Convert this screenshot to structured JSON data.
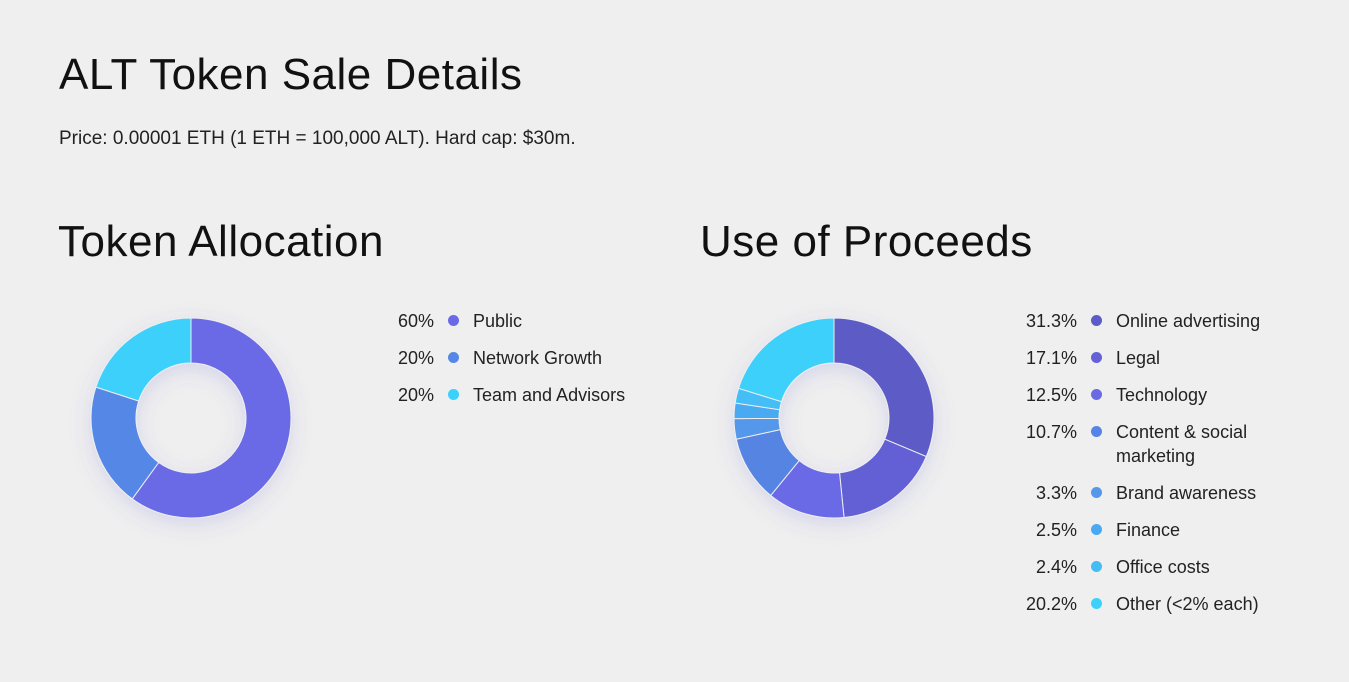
{
  "header": {
    "title": "ALT Token Sale Details",
    "subtitle": "Price: 0.00001 ETH (1 ETH = 100,000 ALT). Hard cap: $30m."
  },
  "chart_data": [
    {
      "type": "pie",
      "title": "Token Allocation",
      "legend_placement": "right",
      "slices": [
        {
          "label": "Public",
          "value": 60,
          "display": "60%",
          "color": "#6b6ae6"
        },
        {
          "label": "Network Growth",
          "value": 20,
          "display": "20%",
          "color": "#5588e6"
        },
        {
          "label": "Team and Advisors",
          "value": 20,
          "display": "20%",
          "color": "#3dd0fb"
        }
      ]
    },
    {
      "type": "pie",
      "title": "Use of Proceeds",
      "legend_placement": "right",
      "slices": [
        {
          "label": "Online advertising",
          "value": 31.3,
          "display": "31.3%",
          "color": "#5d5bc7"
        },
        {
          "label": "Legal",
          "value": 17.1,
          "display": "17.1%",
          "color": "#6461d6"
        },
        {
          "label": "Technology",
          "value": 12.5,
          "display": "12.5%",
          "color": "#6b6ae6"
        },
        {
          "label": "Content & social marketing",
          "value": 10.7,
          "display": "10.7%",
          "color": "#5584e3"
        },
        {
          "label": "Brand awareness",
          "value": 3.3,
          "display": "3.3%",
          "color": "#5597ea"
        },
        {
          "label": "Finance",
          "value": 2.5,
          "display": "2.5%",
          "color": "#4aa9f1"
        },
        {
          "label": "Office costs",
          "value": 2.4,
          "display": "2.4%",
          "color": "#44bdf7"
        },
        {
          "label": "Other (<2% each)",
          "value": 20.2,
          "display": "20.2%",
          "color": "#3dd0fb"
        }
      ]
    }
  ]
}
